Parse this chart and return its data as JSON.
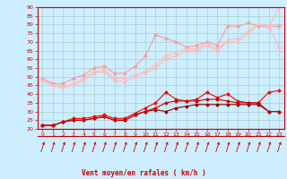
{
  "xlabel": "Vent moyen/en rafales ( km/h )",
  "bg_color": "#cceeff",
  "grid_color": "#aacccc",
  "xlim": [
    -0.5,
    23.5
  ],
  "ylim": [
    20,
    90
  ],
  "yticks": [
    20,
    25,
    30,
    35,
    40,
    45,
    50,
    55,
    60,
    65,
    70,
    75,
    80,
    85,
    90
  ],
  "xticks": [
    0,
    1,
    2,
    3,
    4,
    5,
    6,
    7,
    8,
    9,
    10,
    11,
    12,
    13,
    14,
    15,
    16,
    17,
    18,
    19,
    20,
    21,
    22,
    23
  ],
  "series": [
    {
      "x": [
        0,
        1,
        2,
        3,
        4,
        5,
        6,
        7,
        8,
        9,
        10,
        11,
        12,
        13,
        14,
        15,
        16,
        17,
        18,
        19,
        20,
        21,
        22,
        23
      ],
      "y": [
        48,
        45,
        44,
        45,
        48,
        52,
        53,
        48,
        47,
        50,
        52,
        55,
        60,
        62,
        65,
        65,
        68,
        65,
        70,
        70,
        75,
        80,
        78,
        90
      ],
      "color": "#ffbbbb",
      "lw": 0.8,
      "marker": "D",
      "ms": 1.5
    },
    {
      "x": [
        0,
        1,
        2,
        3,
        4,
        5,
        6,
        7,
        8,
        9,
        10,
        11,
        12,
        13,
        14,
        15,
        16,
        17,
        18,
        19,
        20,
        21,
        22,
        23
      ],
      "y": [
        49,
        46,
        46,
        49,
        51,
        55,
        56,
        52,
        52,
        56,
        62,
        74,
        72,
        70,
        67,
        68,
        70,
        68,
        79,
        79,
        81,
        79,
        79,
        79
      ],
      "color": "#ff9999",
      "lw": 0.8,
      "marker": "D",
      "ms": 1.5
    },
    {
      "x": [
        0,
        1,
        2,
        3,
        4,
        5,
        6,
        7,
        8,
        9,
        10,
        11,
        12,
        13,
        14,
        15,
        16,
        17,
        18,
        19,
        20,
        21,
        22,
        23
      ],
      "y": [
        48,
        45,
        44,
        46,
        49,
        53,
        54,
        49,
        49,
        51,
        53,
        57,
        62,
        64,
        66,
        66,
        69,
        66,
        71,
        72,
        76,
        80,
        79,
        67
      ],
      "color": "#ffbbbb",
      "lw": 0.8,
      "marker": "D",
      "ms": 1.5
    },
    {
      "x": [
        0,
        1,
        2,
        3,
        4,
        5,
        6,
        7,
        8,
        9,
        10,
        11,
        12,
        13,
        14,
        15,
        16,
        17,
        18,
        19,
        20,
        21,
        22,
        23
      ],
      "y": [
        22,
        22,
        24,
        25,
        25,
        26,
        27,
        25,
        25,
        28,
        30,
        31,
        30,
        32,
        33,
        34,
        34,
        34,
        34,
        34,
        34,
        34,
        30,
        30
      ],
      "color": "#880000",
      "lw": 0.8,
      "marker": "D",
      "ms": 1.5
    },
    {
      "x": [
        0,
        1,
        2,
        3,
        4,
        5,
        6,
        7,
        8,
        9,
        10,
        11,
        12,
        13,
        14,
        15,
        16,
        17,
        18,
        19,
        20,
        21,
        22,
        23
      ],
      "y": [
        22,
        22,
        24,
        26,
        26,
        27,
        28,
        26,
        26,
        29,
        32,
        35,
        41,
        37,
        36,
        37,
        41,
        38,
        40,
        36,
        35,
        35,
        41,
        42
      ],
      "color": "#ff0000",
      "lw": 0.8,
      "marker": "D",
      "ms": 1.5
    },
    {
      "x": [
        0,
        1,
        2,
        3,
        4,
        5,
        6,
        7,
        8,
        9,
        10,
        11,
        12,
        13,
        14,
        15,
        16,
        17,
        18,
        19,
        20,
        21,
        22,
        23
      ],
      "y": [
        22,
        22,
        24,
        25,
        25,
        26,
        27,
        25,
        25,
        28,
        30,
        32,
        35,
        36,
        36,
        36,
        37,
        37,
        36,
        35,
        35,
        35,
        30,
        30
      ],
      "color": "#cc0000",
      "lw": 0.8,
      "marker": "D",
      "ms": 1.5
    }
  ]
}
